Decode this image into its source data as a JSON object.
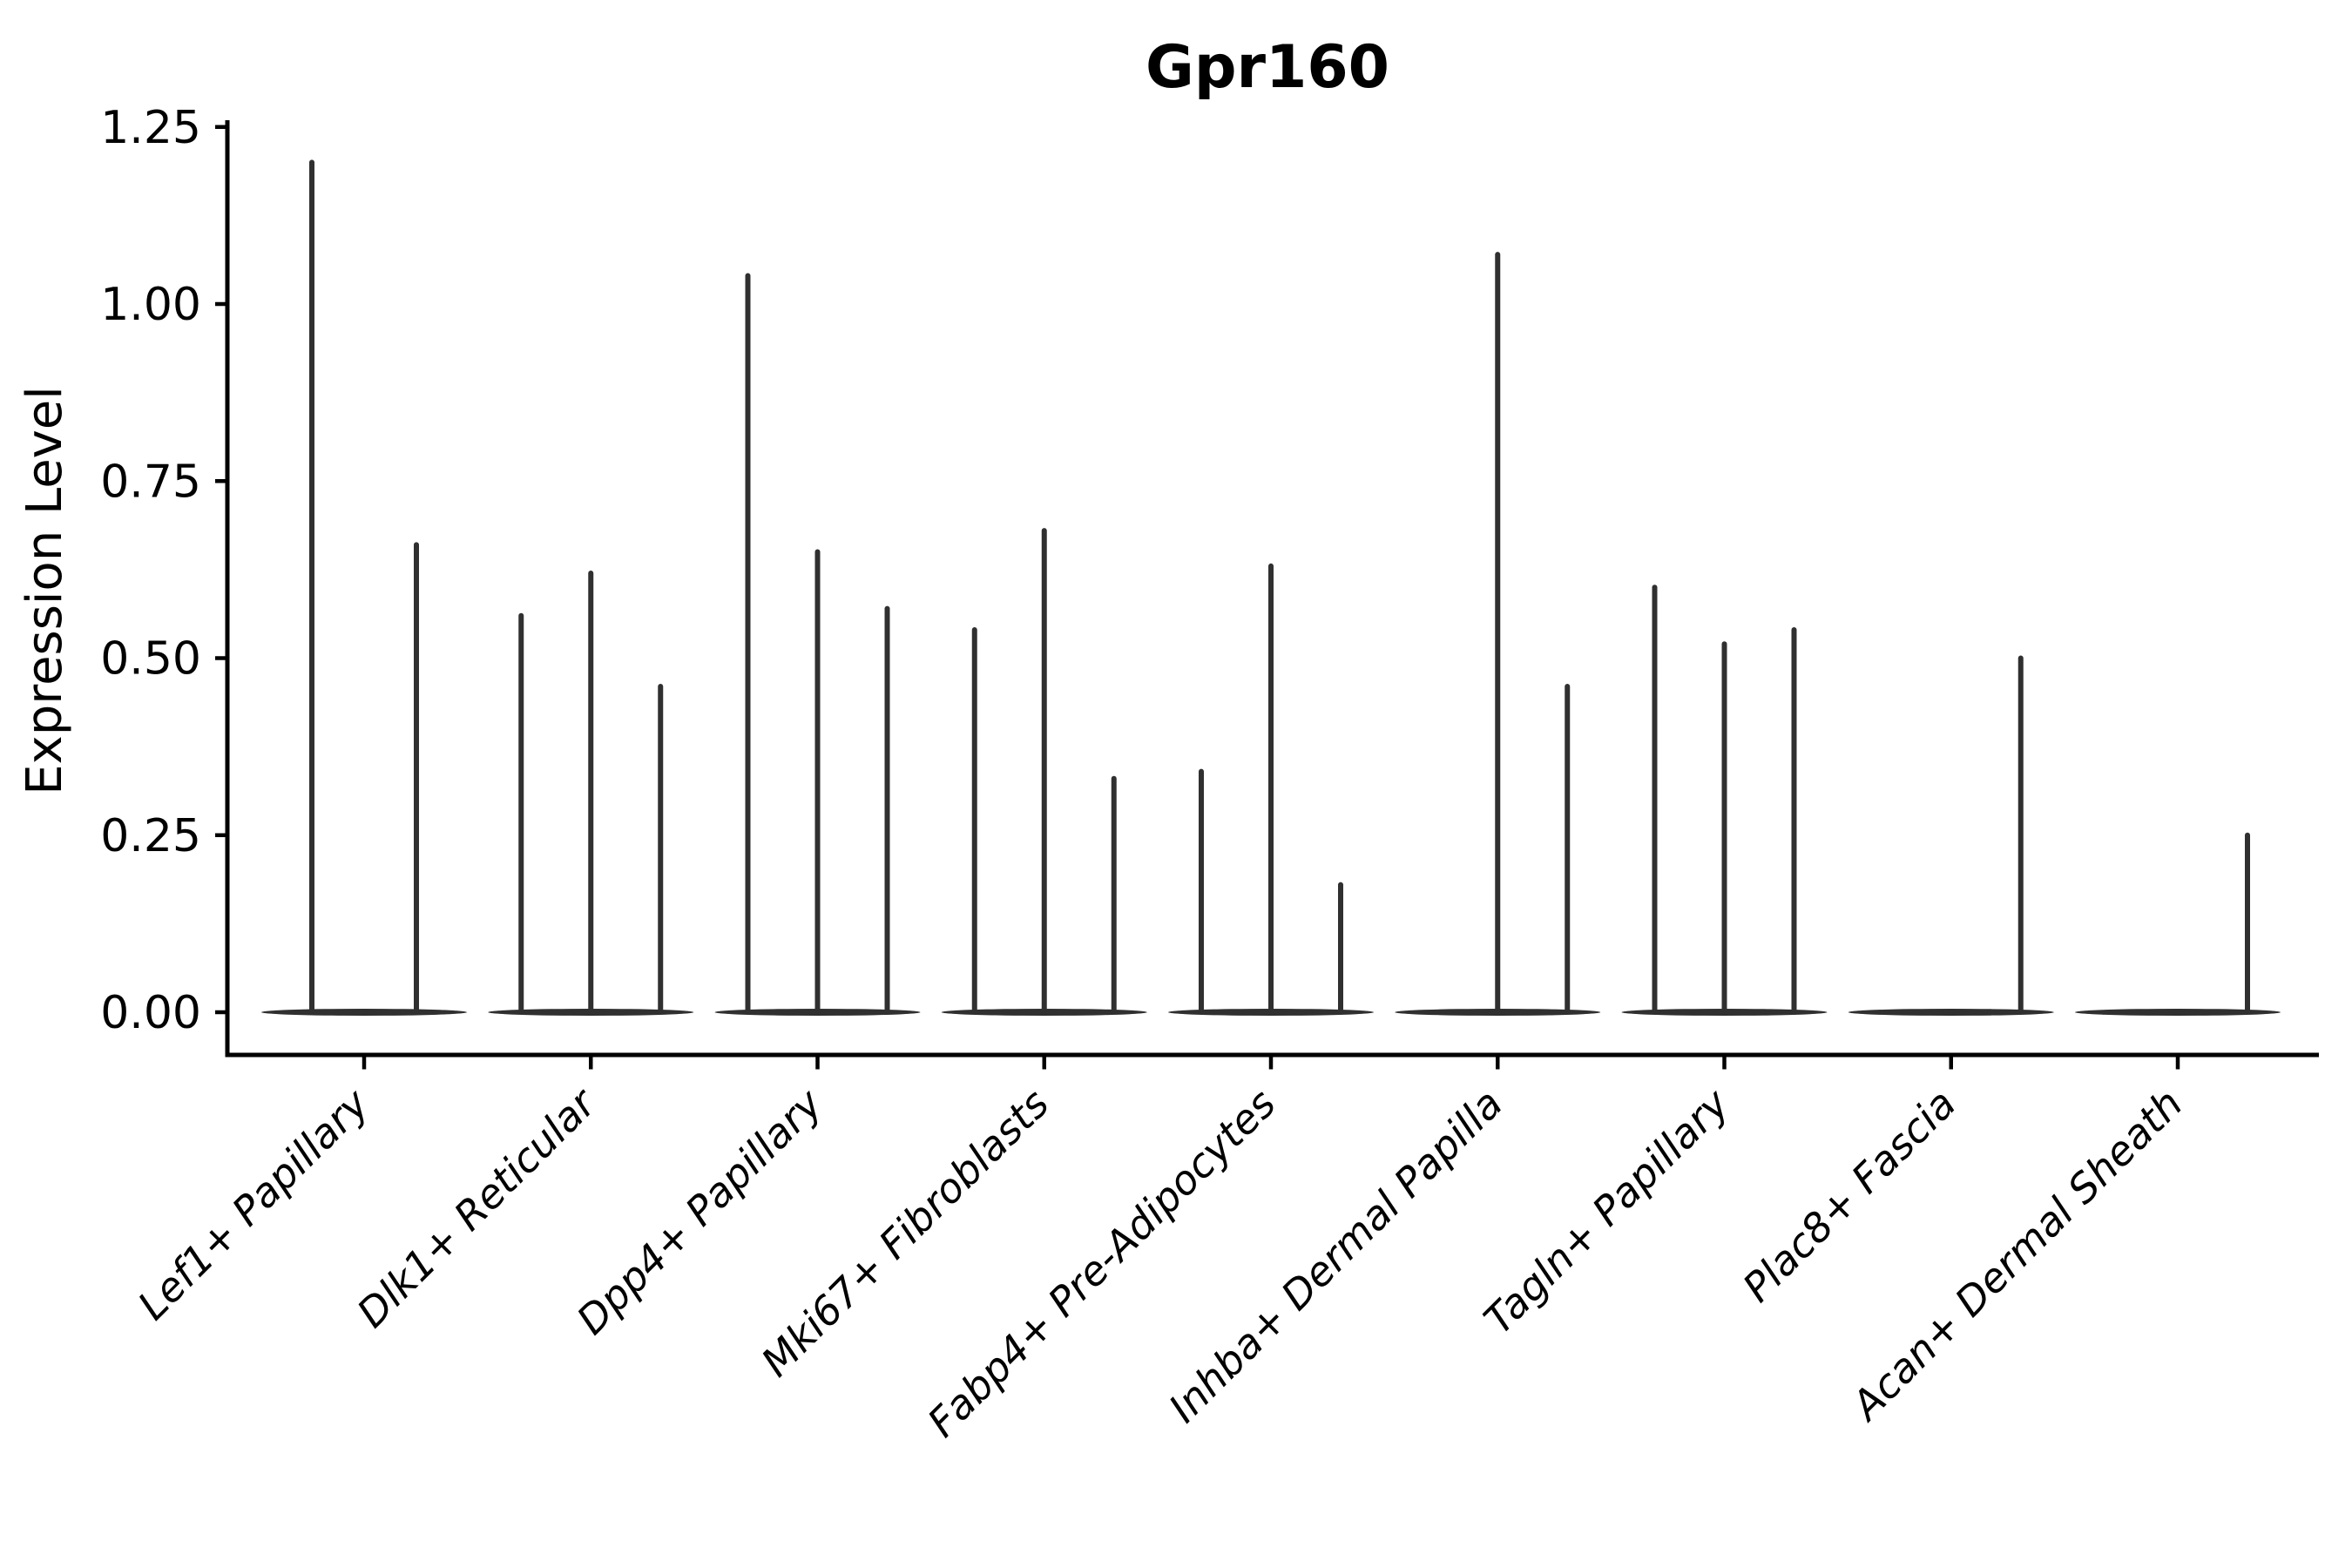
{
  "chart_data": {
    "type": "violin",
    "title": "Gpr160",
    "ylabel": "Expression Level",
    "xlabel": "",
    "ylim": [
      -0.06,
      1.26
    ],
    "yticks": [
      0.0,
      0.25,
      0.5,
      0.75,
      1.0,
      1.25
    ],
    "ytick_labels": [
      "0.00",
      "0.25",
      "0.50",
      "0.75",
      "1.00",
      "1.25"
    ],
    "categories": [
      "Lef1+ Papillary",
      "Dlk1+ Reticular",
      "Dpp4+ Papillary",
      "Mki67+ Fibroblasts",
      "Fabp4+ Pre-Adipocytes",
      "Inhba+ Dermal Papilla",
      "Tagln+ Papillary",
      "Plac8+ Fascia",
      "Acan+ Dermal Sheath"
    ],
    "legend": null,
    "grid": false,
    "description": "Violin plot of Gpr160 expression per fibroblast cell type; each category shows a flat violin mass at 0 with thin spikes marking sub-violin expression maxima",
    "groups": [
      {
        "category": "Lef1+ Papillary",
        "spikes": [
          {
            "x_offset": -60,
            "peak": 1.2
          },
          {
            "x_offset": 60,
            "peak": 0.66
          }
        ]
      },
      {
        "category": "Dlk1+ Reticular",
        "spikes": [
          {
            "x_offset": -80,
            "peak": 0.56
          },
          {
            "x_offset": 0,
            "peak": 0.62
          },
          {
            "x_offset": 80,
            "peak": 0.46
          }
        ]
      },
      {
        "category": "Dpp4+ Papillary",
        "spikes": [
          {
            "x_offset": -80,
            "peak": 1.04
          },
          {
            "x_offset": 0,
            "peak": 0.65
          },
          {
            "x_offset": 80,
            "peak": 0.57
          }
        ]
      },
      {
        "category": "Mki67+ Fibroblasts",
        "spikes": [
          {
            "x_offset": -80,
            "peak": 0.54
          },
          {
            "x_offset": 0,
            "peak": 0.68
          },
          {
            "x_offset": 80,
            "peak": 0.33
          }
        ]
      },
      {
        "category": "Fabp4+ Pre-Adipocytes",
        "spikes": [
          {
            "x_offset": -80,
            "peak": 0.34
          },
          {
            "x_offset": 0,
            "peak": 0.63
          },
          {
            "x_offset": 80,
            "peak": 0.18
          }
        ]
      },
      {
        "category": "Inhba+ Dermal Papilla",
        "spikes": [
          {
            "x_offset": 0,
            "peak": 1.07
          },
          {
            "x_offset": 80,
            "peak": 0.46
          }
        ]
      },
      {
        "category": "Tagln+ Papillary",
        "spikes": [
          {
            "x_offset": -80,
            "peak": 0.6
          },
          {
            "x_offset": 0,
            "peak": 0.52
          },
          {
            "x_offset": 80,
            "peak": 0.54
          }
        ]
      },
      {
        "category": "Plac8+ Fascia",
        "spikes": [
          {
            "x_offset": 80,
            "peak": 0.5
          }
        ]
      },
      {
        "category": "Acan+ Dermal Sheath",
        "spikes": [
          {
            "x_offset": 80,
            "peak": 0.25
          }
        ]
      }
    ],
    "style": {
      "violin_color": "#303030",
      "axis_color": "#000000",
      "text_color": "#000000",
      "background": "#ffffff"
    }
  }
}
